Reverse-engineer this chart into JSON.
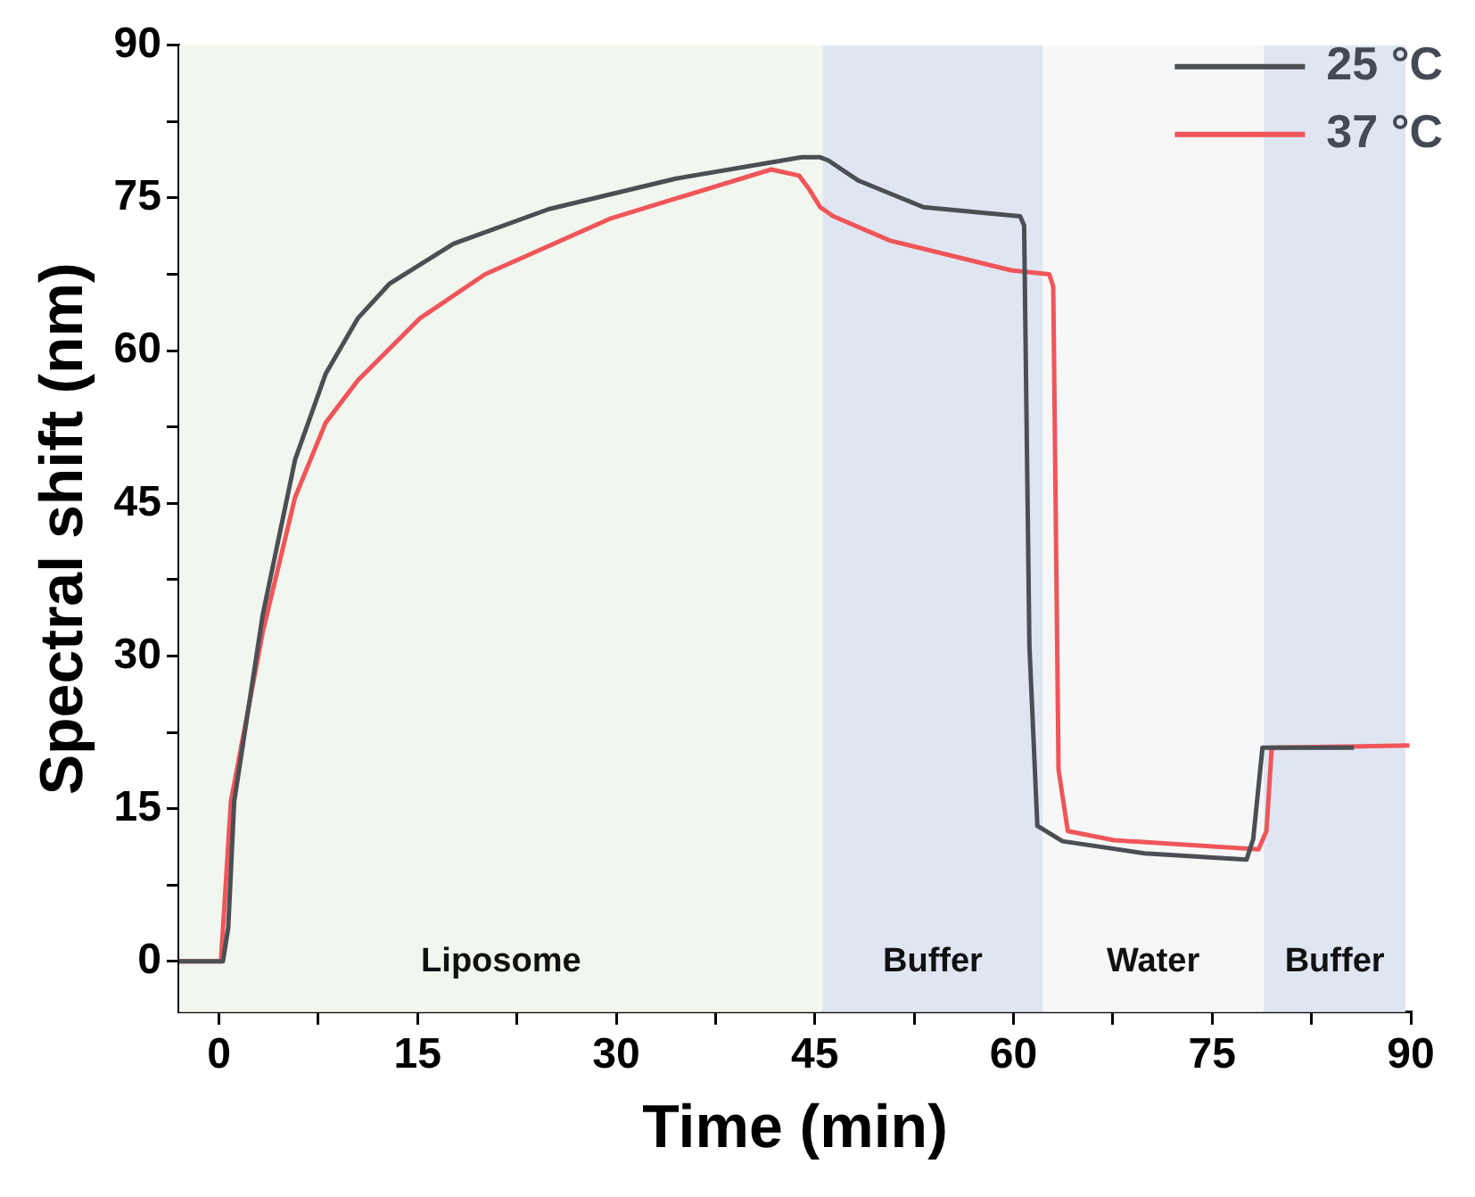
{
  "chart_data": {
    "type": "line",
    "xlabel": "Time (min)",
    "ylabel": "Spectral shift (nm)",
    "xlim": [
      -3,
      90
    ],
    "xticks": [
      0,
      {
        "value": 7.5,
        "label": null
      },
      15,
      {
        "value": 22.5,
        "label": null
      },
      30,
      {
        "value": 37.5,
        "label": null
      },
      45,
      {
        "value": 52.5,
        "label": null
      },
      60,
      {
        "value": 67.5,
        "label": null
      },
      75,
      {
        "value": 82.5,
        "label": null
      },
      90
    ],
    "ylim": [
      -5,
      90
    ],
    "yticks": [
      0,
      {
        "value": 7.5,
        "label": null
      },
      15,
      {
        "value": 22.5,
        "label": null
      },
      30,
      {
        "value": 37.5,
        "label": null
      },
      45,
      {
        "value": 52.5,
        "label": null
      },
      60,
      {
        "value": 67.5,
        "label": null
      },
      75,
      {
        "value": 82.5,
        "label": null
      },
      90
    ],
    "grid": false,
    "legend": "top right",
    "marker": "none",
    "line_style": "solid",
    "bands": [
      {
        "axis": "x",
        "from": -3,
        "to": 45.6,
        "label": "Liposome",
        "color": "#f1f6ee"
      },
      {
        "axis": "x",
        "from": 45.6,
        "to": 62.2,
        "label": "Buffer",
        "color": "#dfe6f2"
      },
      {
        "axis": "x",
        "from": 62.2,
        "to": 78.9,
        "label": "Water",
        "color": "#f7f7f7"
      },
      {
        "axis": "x",
        "from": 78.9,
        "to": 89.6,
        "label": "Buffer",
        "color": "#dfe6f2"
      }
    ],
    "series": [
      {
        "name": "25 °C",
        "color": "#4b4f54",
        "x": [
          -3,
          0.3,
          0.7,
          1.15,
          3.3,
          5.75,
          8.05,
          10.5,
          12.9,
          17.7,
          24.9,
          34.5,
          44,
          45.4,
          46,
          48.3,
          53.2,
          60.5,
          60.8,
          61.2,
          61.8,
          63.7,
          69.9,
          77.6,
          78.1,
          78.8,
          85.7
        ],
        "values": [
          0,
          0,
          3.3,
          15.7,
          34,
          49.3,
          57.7,
          63.2,
          66.6,
          70.5,
          73.9,
          76.9,
          79,
          79,
          78.7,
          76.7,
          74.1,
          73.2,
          72.3,
          31,
          13.3,
          11.8,
          10.6,
          10,
          12,
          21,
          21
        ]
      },
      {
        "name": "37 °C",
        "color": "#f0555a",
        "x": [
          -3,
          0.15,
          0.9,
          3.3,
          5.75,
          8.05,
          10.5,
          15.2,
          20.1,
          29.6,
          41.7,
          43.8,
          44.6,
          45.4,
          46.4,
          50.7,
          59.8,
          62.7,
          63,
          63.4,
          64.1,
          67.6,
          78.5,
          79.1,
          79.5,
          89.9
        ],
        "values": [
          0,
          0,
          15.7,
          32.3,
          45.6,
          52.9,
          57.1,
          63.2,
          67.5,
          73,
          77.8,
          77.2,
          75.8,
          74.1,
          73.2,
          70.8,
          67.9,
          67.5,
          66.3,
          18.8,
          12.8,
          11.9,
          11,
          12.8,
          21,
          21.2
        ]
      }
    ]
  }
}
